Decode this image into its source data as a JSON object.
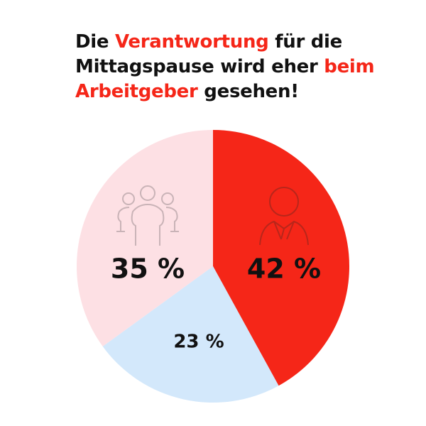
{
  "title": {
    "line1": [
      {
        "text": "Die ",
        "highlight": false
      },
      {
        "text": "Verantwortung",
        "highlight": true
      },
      {
        "text": " für die",
        "highlight": false
      }
    ],
    "line2": [
      {
        "text": "Mittagspause wird eher ",
        "highlight": false
      },
      {
        "text": "beim",
        "highlight": true
      }
    ],
    "line3": [
      {
        "text": "Arbeitgeber",
        "highlight": true
      },
      {
        "text": " gesehen!",
        "highlight": false
      }
    ],
    "highlight_color": "#f52618"
  },
  "chart_data": {
    "type": "pie",
    "start": "top",
    "direction": "clockwise",
    "slices": [
      {
        "value": 42,
        "label": "42 %",
        "color": "#f52618",
        "icon": "person-icon"
      },
      {
        "value": 23,
        "label": "23 %",
        "color": "#d3e8fb"
      },
      {
        "value": 35,
        "label": "35 %",
        "color": "#fde0e4",
        "icon": "group-icon"
      }
    ]
  }
}
